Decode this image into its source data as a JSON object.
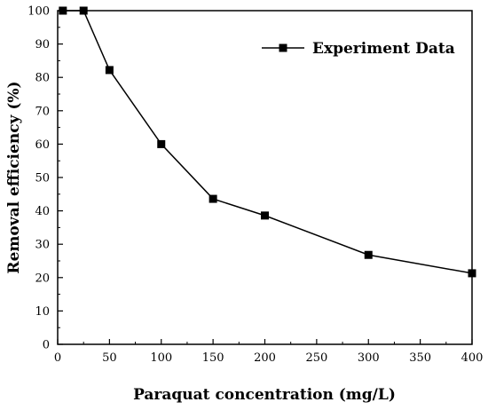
{
  "chart_data": {
    "type": "line",
    "xlabel": "Paraquat concentration (mg/L)",
    "ylabel": "Removal efficiency (%)",
    "xlim": [
      0,
      400
    ],
    "ylim": [
      0,
      100
    ],
    "x_ticks": [
      0,
      50,
      100,
      150,
      200,
      250,
      300,
      350,
      400
    ],
    "y_ticks": [
      0,
      10,
      20,
      30,
      40,
      50,
      60,
      70,
      80,
      90,
      100
    ],
    "grid": false,
    "legend_position": "top-right",
    "series": [
      {
        "name": "Experiment Data",
        "color": "#000000",
        "marker": "square",
        "x": [
          5,
          25,
          50,
          100,
          150,
          200,
          300,
          400
        ],
        "y": [
          100,
          100,
          82.2,
          60.0,
          43.6,
          38.6,
          26.8,
          21.3
        ]
      }
    ]
  }
}
